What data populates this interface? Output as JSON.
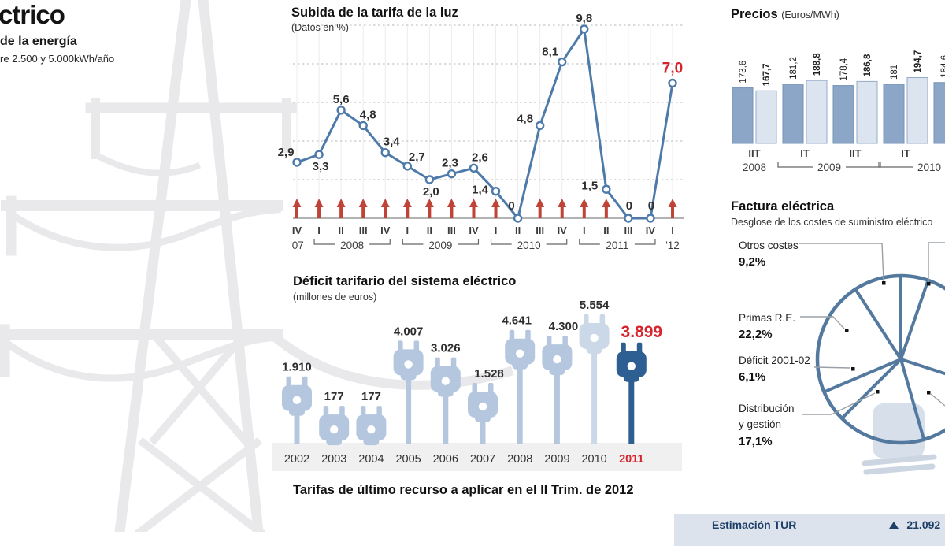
{
  "header": {
    "title_fragment": "ctrico",
    "subtitle_fragment": "de la energía",
    "note_fragment": "re 2.500 y 5.000kWh/año"
  },
  "bottom_heading": "Tarifas de último recurso a aplicar en el II Trim. de 2012",
  "estimation": {
    "label": "Estimación TUR",
    "arrow_icon": "up-triangle-icon",
    "value": "21.092"
  },
  "colors": {
    "steel_blue": "#4d7aa9",
    "arrow_red": "#bf4437",
    "highlight_red": "#d6252e",
    "plug_light": "#b5c7de",
    "plug_lighter": "#cbd8e8",
    "plug_dark": "#2d5f92",
    "bar_dark": "#8ba6c6",
    "bar_dark_border": "#7492b5",
    "bar_light": "#dce4f0",
    "bar_light_border": "#93abc9",
    "pylon_gray": "#e9e9ec",
    "band_gray": "#f0f0f0",
    "box_blue": "#dce3ed",
    "navy_text": "#1e3f66",
    "grid_gray": "#cfcfcf",
    "axis_text": "#3d3d3d",
    "pie_blue": "#54799f",
    "bulb_fill": "#d7dfeb",
    "leader_gray": "#9aa0a6"
  },
  "chart_data": [
    {
      "type": "line",
      "title": "Subida de la tarifa de la luz",
      "subtitle": "(Datos en %)",
      "quarters": [
        "IV",
        "I",
        "II",
        "III",
        "IV",
        "I",
        "II",
        "III",
        "IV",
        "I",
        "II",
        "III",
        "IV",
        "I",
        "II",
        "III",
        "IV",
        "I"
      ],
      "year_groups": [
        {
          "label": "'07",
          "span": 1
        },
        {
          "label": "2008",
          "span": 4
        },
        {
          "label": "2009",
          "span": 4
        },
        {
          "label": "2010",
          "span": 4
        },
        {
          "label": "2011",
          "span": 4
        },
        {
          "label": "'12",
          "span": 1
        }
      ],
      "values": [
        2.9,
        3.3,
        5.6,
        4.8,
        3.4,
        2.7,
        2.0,
        2.3,
        2.6,
        1.4,
        0,
        4.8,
        8.1,
        9.8,
        1.5,
        0,
        0,
        7.0
      ],
      "labels": [
        "2,9",
        "3,3",
        "5,6",
        "4,8",
        "3,4",
        "2,7",
        "2,0",
        "2,3",
        "2,6",
        "1,4",
        "0",
        "4,8",
        "8,1",
        "9,8",
        "1,5",
        "0",
        "0",
        "7,0"
      ],
      "highlight_last": true,
      "ylim": [
        0,
        10
      ],
      "grid": "dashed horizontal every 2"
    },
    {
      "type": "bar",
      "subtype": "pictogram-plugs",
      "title": "Déficit tarifario del sistema eléctrico",
      "subtitle": "(millones de euros)",
      "categories": [
        "2002",
        "2003",
        "2004",
        "2005",
        "2006",
        "2007",
        "2008",
        "2009",
        "2010",
        "2011"
      ],
      "values": [
        1910,
        177,
        177,
        4007,
        3026,
        1528,
        4641,
        4300,
        5554,
        3899
      ],
      "labels": [
        "1.910",
        "177",
        "177",
        "4.007",
        "3.026",
        "1.528",
        "4.641",
        "4.300",
        "5.554",
        "3.899"
      ],
      "highlight_category": "2011",
      "icon": "plug-icon"
    },
    {
      "type": "bar",
      "title": "Precios",
      "subtitle": "(Euros/MWh)",
      "series_note": "pairs of bars per period, dark then light",
      "groups": [
        {
          "quarter": "IIT",
          "values": [
            173.6,
            167.7
          ],
          "labels": [
            "173,6",
            "167,7"
          ]
        },
        {
          "quarter": "IT",
          "values": [
            181.2,
            188.8
          ],
          "labels": [
            "181,2",
            "188,8"
          ]
        },
        {
          "quarter": "IIT",
          "values": [
            178.4,
            186.8
          ],
          "labels": [
            "178,4",
            "186,8"
          ]
        },
        {
          "quarter": "IT",
          "values": [
            181,
            194.7
          ],
          "labels": [
            "181",
            "194,7"
          ]
        },
        {
          "quarter": "",
          "values": [
            184.6
          ],
          "labels": [
            "184,6"
          ]
        }
      ],
      "year_brackets": [
        {
          "label": "2008",
          "from": 0,
          "to": 0,
          "bracket": false
        },
        {
          "label": "2009",
          "from": 1,
          "to": 2,
          "bracket": true
        },
        {
          "label": "2010",
          "from": 3,
          "to": 4,
          "bracket": true,
          "right_open": true
        }
      ]
    },
    {
      "type": "pie",
      "title": "Factura eléctrica",
      "subtitle": "Desglose de los costes de suministro eléctrico",
      "style": "outlined wheel on light-bulb pictogram",
      "slices": [
        {
          "label_lines": [
            "Otros costes"
          ],
          "pct_label": "9,2%",
          "value": 9.2
        },
        {
          "label_lines": [
            "Primas R.E."
          ],
          "pct_label": "22,2%",
          "value": 22.2
        },
        {
          "label_lines": [
            "Déficit 2001-02"
          ],
          "pct_label": "6,1%",
          "value": 6.1
        },
        {
          "label_lines": [
            "Distribución",
            "y gestión"
          ],
          "pct_label": "17,1%",
          "value": 17.1
        }
      ]
    }
  ]
}
